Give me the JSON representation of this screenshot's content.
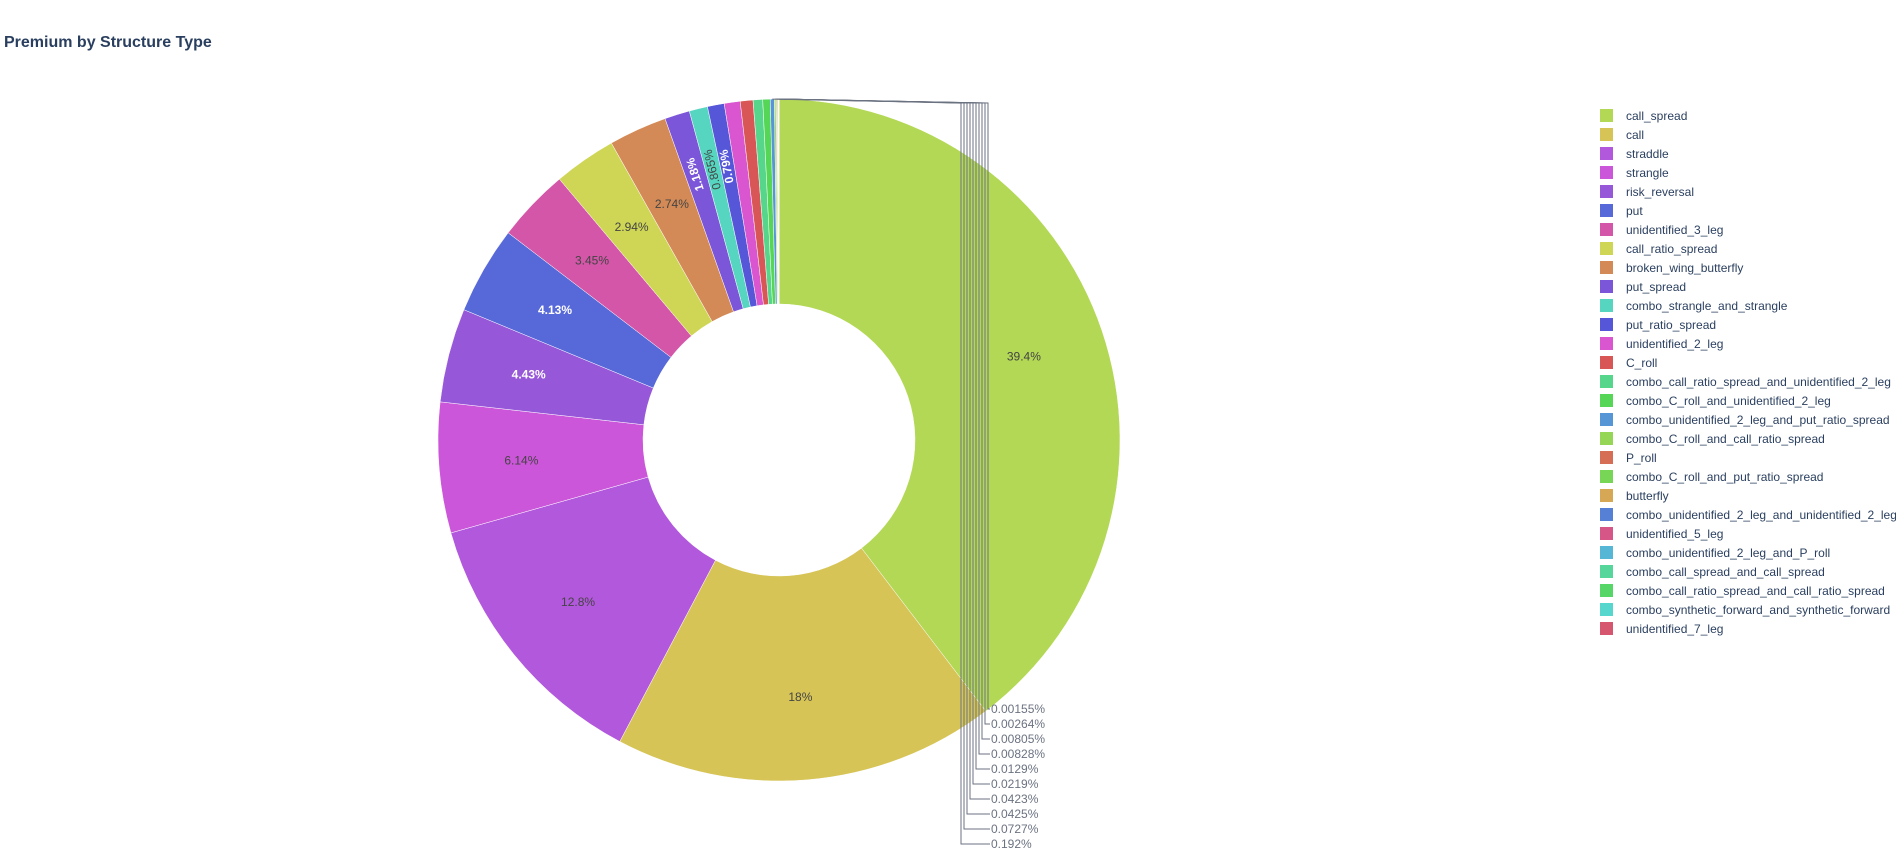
{
  "chart_data": {
    "type": "pie",
    "title": "Premium by Structure Type",
    "hole": true,
    "legend_position": "right",
    "slices": [
      {
        "label": "call_spread",
        "value": 39.4,
        "text": "39.4%",
        "color": "#b3d855"
      },
      {
        "label": "call",
        "value": 18,
        "text": "18%",
        "color": "#d6c456"
      },
      {
        "label": "straddle",
        "value": 12.8,
        "text": "12.8%",
        "color": "#b258dc"
      },
      {
        "label": "strangle",
        "value": 6.14,
        "text": "6.14%",
        "color": "#cc56d9"
      },
      {
        "label": "risk_reversal",
        "value": 4.43,
        "text": "4.43%",
        "color": "#9657d9"
      },
      {
        "label": "put",
        "value": 4.13,
        "text": "4.13%",
        "color": "#5768d9"
      },
      {
        "label": "unidentified_3_leg",
        "value": 3.45,
        "text": "3.45%",
        "color": "#d456a8"
      },
      {
        "label": "call_ratio_spread",
        "value": 2.94,
        "text": "2.94%",
        "color": "#cfd656"
      },
      {
        "label": "broken_wing_butterfly",
        "value": 2.74,
        "text": "2.74%",
        "color": "#d48a56"
      },
      {
        "label": "put_spread",
        "value": 1.18,
        "text": "1.18%",
        "color": "#7b56d9"
      },
      {
        "label": "combo_strangle_and_strangle",
        "value": 0.865,
        "text": "0.865%",
        "color": "#56d6c0"
      },
      {
        "label": "put_ratio_spread",
        "value": 0.79,
        "text": "0.79%",
        "color": "#5656d9"
      },
      {
        "label": "unidentified_2_leg",
        "value": 0.75,
        "text": "",
        "color": "#d956d0"
      },
      {
        "label": "C_roll",
        "value": 0.6,
        "text": "",
        "color": "#d95656"
      },
      {
        "label": "combo_call_ratio_spread_and_unidentified_2_leg",
        "value": 0.45,
        "text": "",
        "color": "#56d68a"
      },
      {
        "label": "combo_C_roll_and_unidentified_2_leg",
        "value": 0.35,
        "text": "",
        "color": "#56d656"
      },
      {
        "label": "combo_unidentified_2_leg_and_put_ratio_spread",
        "value": 0.192,
        "text": "0.192%",
        "color": "#5696d6"
      },
      {
        "label": "combo_C_roll_and_call_ratio_spread",
        "value": 0.0727,
        "text": "0.0727%",
        "color": "#96d656"
      },
      {
        "label": "P_roll",
        "value": 0.0425,
        "text": "0.0425%",
        "color": "#d66e56"
      },
      {
        "label": "combo_C_roll_and_put_ratio_spread",
        "value": 0.0423,
        "text": "0.0423%",
        "color": "#78d656"
      },
      {
        "label": "butterfly",
        "value": 0.0219,
        "text": "0.0219%",
        "color": "#d6a856"
      },
      {
        "label": "combo_unidentified_2_leg_and_unidentified_2_leg",
        "value": 0.0129,
        "text": "0.0129%",
        "color": "#5680d6"
      },
      {
        "label": "unidentified_5_leg",
        "value": 0.00828,
        "text": "0.00828%",
        "color": "#d65688"
      },
      {
        "label": "combo_unidentified_2_leg_and_P_roll",
        "value": 0.00805,
        "text": "0.00805%",
        "color": "#56b6d6"
      },
      {
        "label": "combo_call_spread_and_call_spread",
        "value": 0.00264,
        "text": "0.00264%",
        "color": "#56d69a"
      },
      {
        "label": "combo_call_ratio_spread_and_call_ratio_spread",
        "value": 0.00155,
        "text": "0.00155%",
        "color": "#56d666"
      },
      {
        "label": "combo_synthetic_forward_and_synthetic_forward",
        "value": 0.001,
        "text": "",
        "color": "#56d6cc"
      },
      {
        "label": "unidentified_7_leg",
        "value": 0.001,
        "text": "",
        "color": "#d65670"
      }
    ]
  }
}
